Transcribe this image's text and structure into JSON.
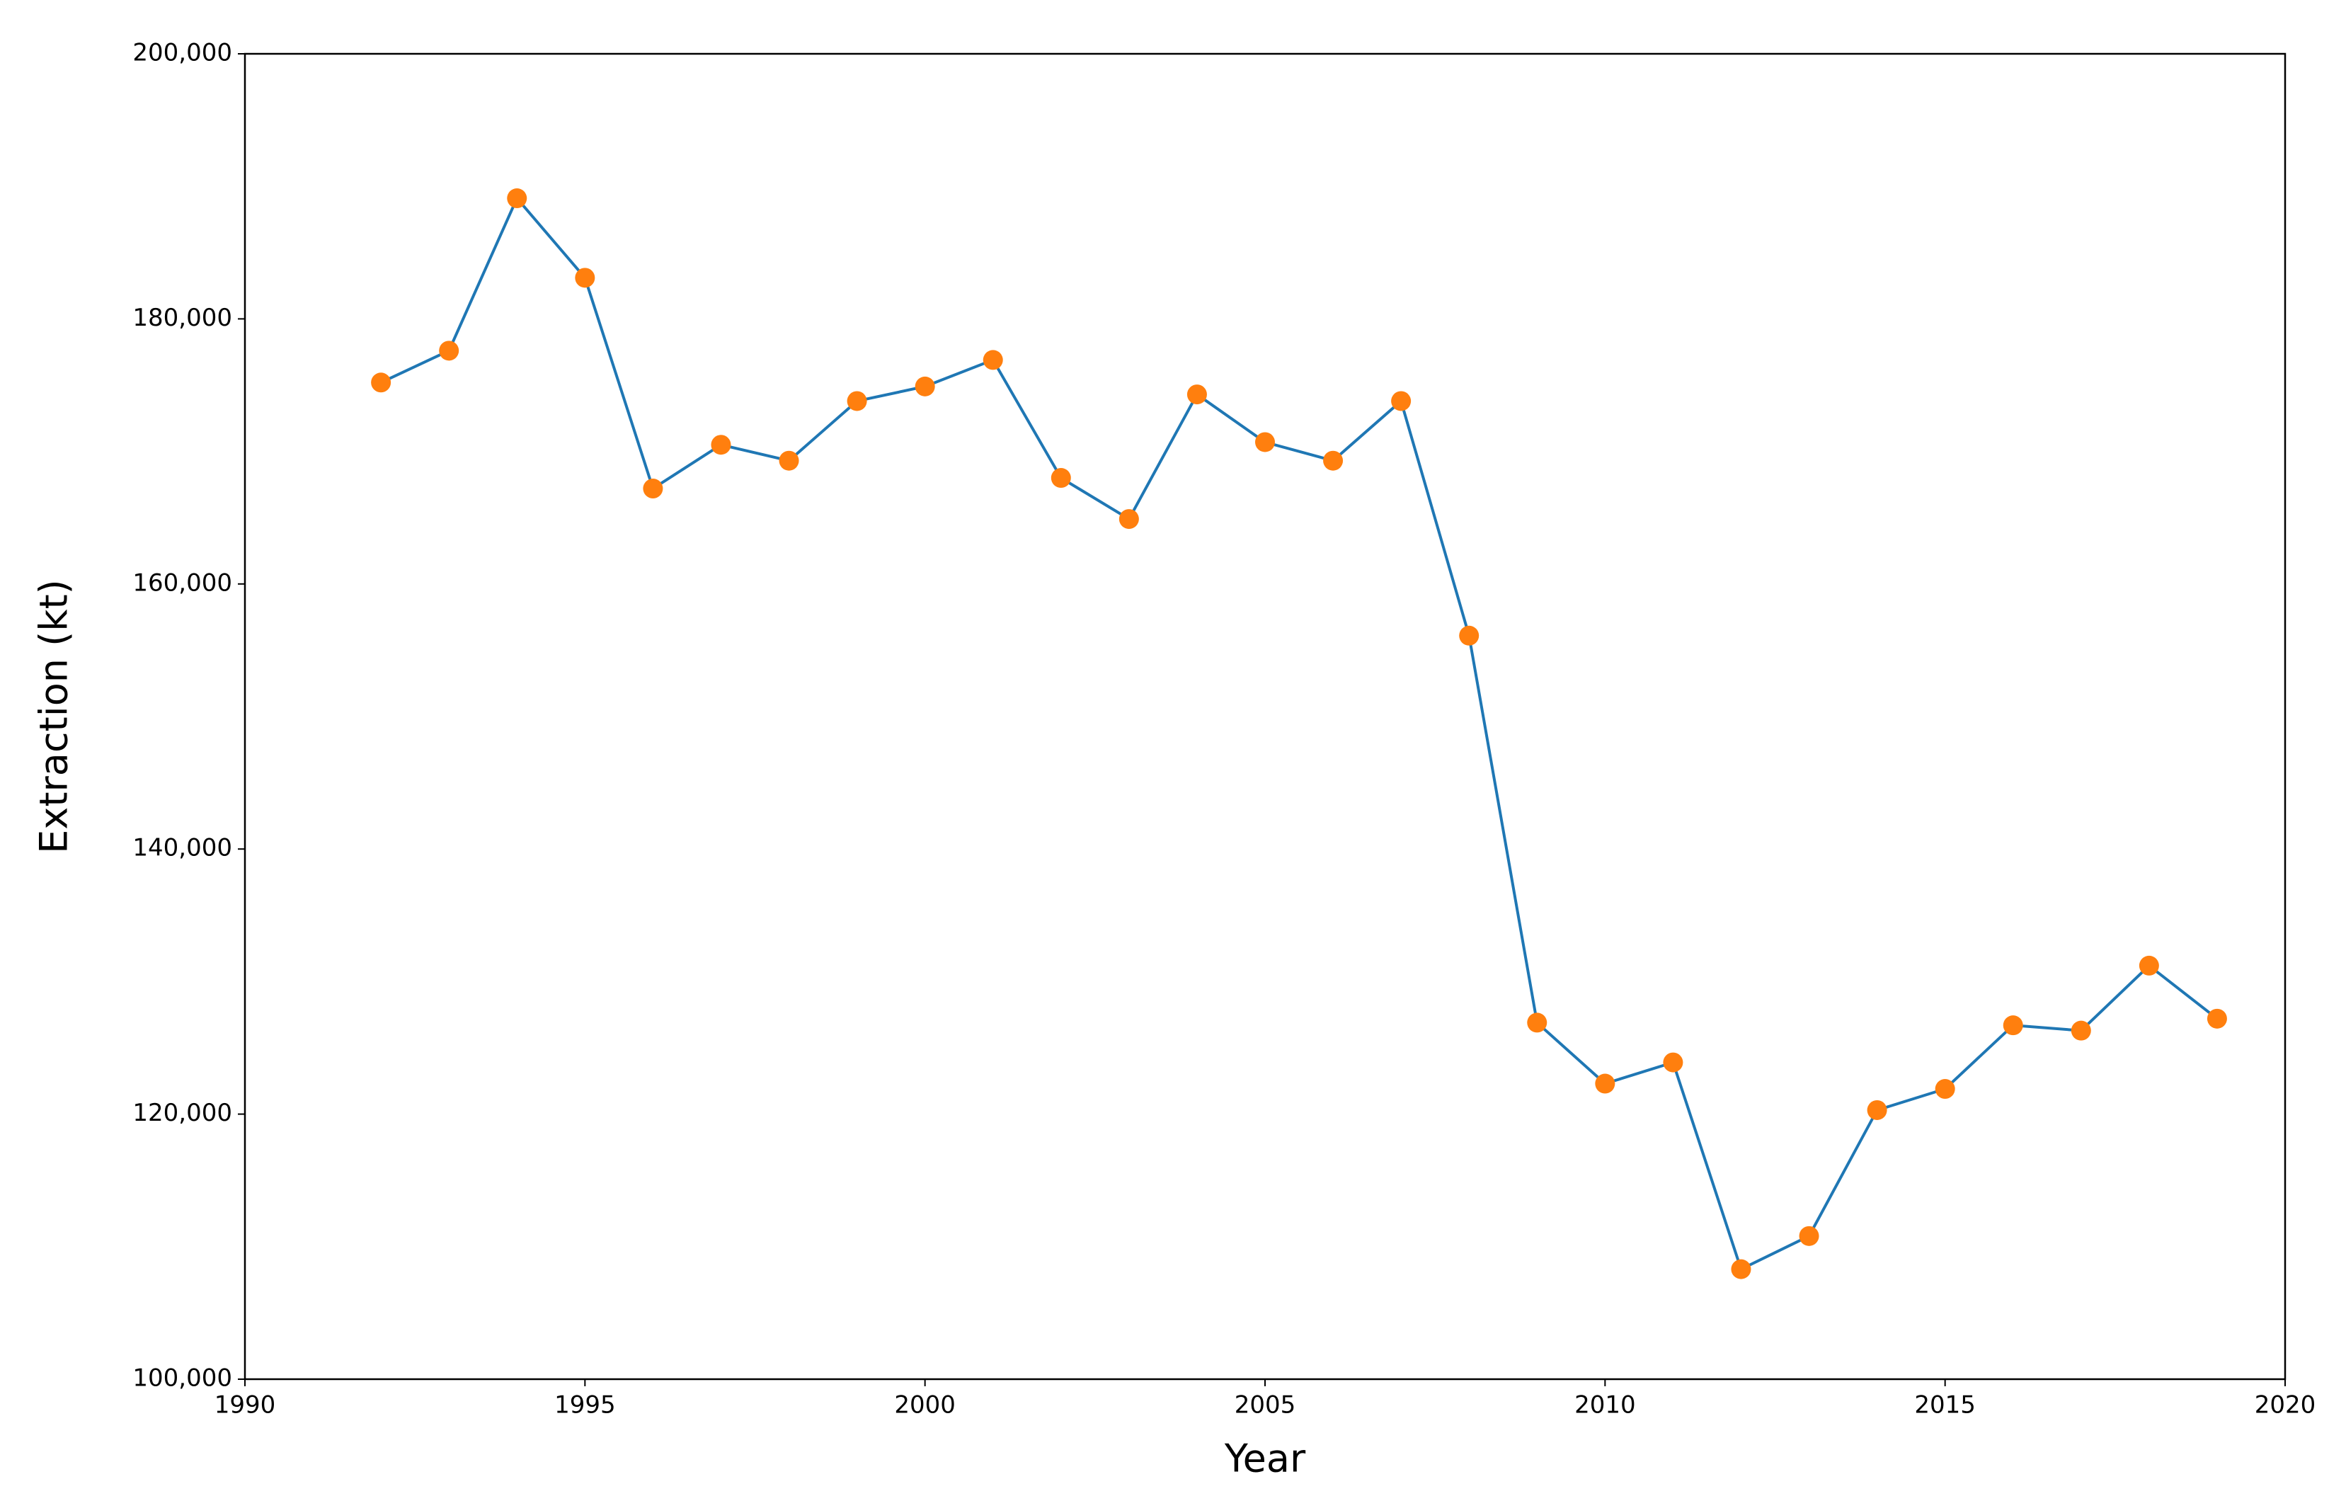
{
  "chart_data": {
    "type": "line",
    "xlabel": "Year",
    "ylabel": "Extraction (kt)",
    "x": [
      1992,
      1993,
      1994,
      1995,
      1996,
      1997,
      1998,
      1999,
      2000,
      2001,
      2002,
      2003,
      2004,
      2005,
      2006,
      2007,
      2008,
      2009,
      2010,
      2011,
      2012,
      2013,
      2014,
      2015,
      2016,
      2017,
      2018,
      2019
    ],
    "series": [
      {
        "color": "#1f77b4",
        "marker_color": "#ff7f0e",
        "values": [
          175200,
          177600,
          189100,
          183100,
          167200,
          170500,
          169300,
          173800,
          174900,
          176900,
          168000,
          164900,
          174300,
          170700,
          169300,
          173800,
          156100,
          126900,
          122300,
          123900,
          108300,
          110800,
          120300,
          121900,
          126700,
          126300,
          131200,
          127200
        ]
      }
    ],
    "xlim": [
      1990,
      2020
    ],
    "xticks": [
      1990,
      1995,
      2000,
      2005,
      2010,
      2015,
      2020
    ],
    "ylim": [
      100000,
      200000
    ],
    "yticks": [
      {
        "value": 100000,
        "label": "100,000"
      },
      {
        "value": 120000,
        "label": "120,000"
      },
      {
        "value": 140000,
        "label": "140,000"
      },
      {
        "value": 160000,
        "label": "160,000"
      },
      {
        "value": 180000,
        "label": "180,000"
      },
      {
        "value": 200000,
        "label": "200,000"
      }
    ],
    "grid": false
  }
}
